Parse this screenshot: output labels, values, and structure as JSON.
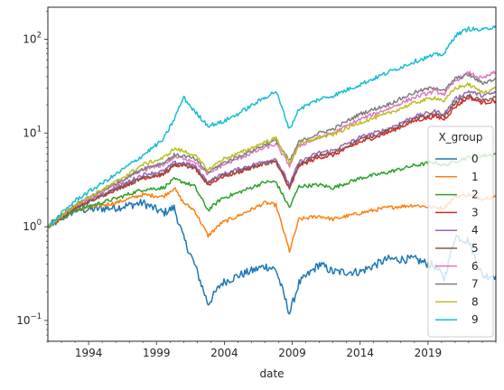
{
  "chart_data": {
    "type": "line",
    "xlabel": "date",
    "ylabel": "",
    "yscale": "log",
    "xlim": [
      1991.0,
      2024.0
    ],
    "ylim": [
      0.06,
      220
    ],
    "grid": false,
    "x_ticks": [
      1994,
      1999,
      2004,
      2009,
      2014,
      2019
    ],
    "x_tick_labels": [
      "1994",
      "1999",
      "2004",
      "2009",
      "2014",
      "2019"
    ],
    "y_ticks": [
      0.1,
      1,
      10,
      100
    ],
    "y_tick_labels": [
      {
        "base": "10",
        "exp": "−1"
      },
      {
        "base": "10",
        "exp": "0"
      },
      {
        "base": "10",
        "exp": "1"
      },
      {
        "base": "10",
        "exp": "2"
      }
    ],
    "legend": {
      "title": "X_group",
      "placement": "right"
    },
    "x": [
      1991.0,
      1993.0,
      1996.0,
      1998.0,
      1999.5,
      2000.3,
      2001.0,
      2001.8,
      2002.8,
      2003.8,
      2005.0,
      2007.0,
      2007.8,
      2008.8,
      2009.5,
      2011.0,
      2012.0,
      2014.0,
      2016.0,
      2018.0,
      2019.5,
      2020.2,
      2021.0,
      2022.0,
      2023.0,
      2024.0
    ],
    "series": [
      {
        "name": "0",
        "color": "#1f77b4",
        "values": [
          1.0,
          1.5,
          1.6,
          1.8,
          1.4,
          1.6,
          0.75,
          0.4,
          0.15,
          0.25,
          0.3,
          0.38,
          0.35,
          0.12,
          0.25,
          0.4,
          0.33,
          0.33,
          0.45,
          0.45,
          0.38,
          0.28,
          0.8,
          0.7,
          0.3,
          0.3
        ]
      },
      {
        "name": "1",
        "color": "#ff7f0e",
        "values": [
          1.0,
          1.5,
          1.8,
          2.2,
          2.1,
          2.6,
          1.8,
          1.5,
          0.8,
          1.1,
          1.3,
          1.8,
          1.7,
          0.55,
          1.2,
          1.3,
          1.2,
          1.4,
          1.6,
          1.7,
          1.6,
          1.6,
          2.1,
          2.2,
          2.0,
          2.1
        ]
      },
      {
        "name": "2",
        "color": "#2ca02c",
        "values": [
          1.0,
          1.5,
          2.0,
          2.5,
          2.6,
          3.2,
          3.0,
          2.7,
          1.5,
          2.0,
          2.3,
          3.0,
          3.0,
          1.6,
          2.7,
          2.8,
          2.6,
          3.3,
          3.8,
          4.5,
          4.9,
          4.5,
          5.0,
          5.5,
          5.7,
          6.0
        ]
      },
      {
        "name": "3",
        "color": "#d62728",
        "values": [
          1.0,
          1.6,
          2.5,
          3.3,
          3.6,
          4.5,
          4.6,
          4.3,
          2.8,
          3.4,
          3.8,
          4.8,
          5.0,
          2.5,
          4.5,
          5.5,
          5.8,
          8.0,
          10.0,
          13.5,
          15.0,
          14.0,
          19.0,
          24.0,
          21.0,
          22.0
        ]
      },
      {
        "name": "4",
        "color": "#9467bd",
        "values": [
          1.0,
          1.6,
          2.6,
          3.6,
          3.9,
          4.8,
          4.8,
          4.5,
          3.0,
          3.6,
          4.1,
          5.0,
          5.3,
          2.8,
          4.9,
          6.2,
          6.5,
          9.0,
          11.0,
          15.0,
          17.0,
          16.0,
          23.0,
          28.0,
          25.0,
          27.0
        ]
      },
      {
        "name": "5",
        "color": "#8c564b",
        "values": [
          1.0,
          1.6,
          2.5,
          3.3,
          3.7,
          4.6,
          4.5,
          4.2,
          2.9,
          3.5,
          3.9,
          4.7,
          5.0,
          2.6,
          4.6,
          5.8,
          6.1,
          8.5,
          10.5,
          14.0,
          16.0,
          15.0,
          21.0,
          25.0,
          22.0,
          24.0
        ]
      },
      {
        "name": "6",
        "color": "#e377c2",
        "values": [
          1.0,
          1.7,
          2.8,
          4.0,
          4.6,
          5.5,
          5.4,
          5.0,
          3.6,
          4.5,
          5.3,
          7.0,
          7.6,
          4.5,
          7.3,
          9.0,
          10.0,
          14.0,
          18.0,
          24.0,
          28.0,
          26.0,
          36.0,
          44.0,
          38.0,
          45.0
        ]
      },
      {
        "name": "7",
        "color": "#7f7f7f",
        "values": [
          1.0,
          1.7,
          2.9,
          4.2,
          4.8,
          5.8,
          5.7,
          5.3,
          3.8,
          4.7,
          5.6,
          7.5,
          8.4,
          5.0,
          8.0,
          10.0,
          11.0,
          16.0,
          20.0,
          27.0,
          31.0,
          28.0,
          38.0,
          42.0,
          34.0,
          38.0
        ]
      },
      {
        "name": "8",
        "color": "#bcbd22",
        "values": [
          1.0,
          1.7,
          3.0,
          4.6,
          5.4,
          6.8,
          6.4,
          5.8,
          4.0,
          5.2,
          6.0,
          8.0,
          8.8,
          4.8,
          7.5,
          9.0,
          9.6,
          13.0,
          16.0,
          21.0,
          24.0,
          22.0,
          30.0,
          33.0,
          27.0,
          30.0
        ]
      },
      {
        "name": "9",
        "color": "#17becf",
        "values": [
          1.0,
          1.9,
          3.6,
          5.8,
          8.5,
          14.0,
          24.0,
          17.0,
          12.0,
          13.0,
          16.0,
          24.0,
          28.0,
          11.0,
          18.0,
          23.0,
          25.0,
          33.0,
          44.0,
          58.0,
          68.0,
          70.0,
          110.0,
          130.0,
          125.0,
          140.0
        ]
      }
    ]
  }
}
